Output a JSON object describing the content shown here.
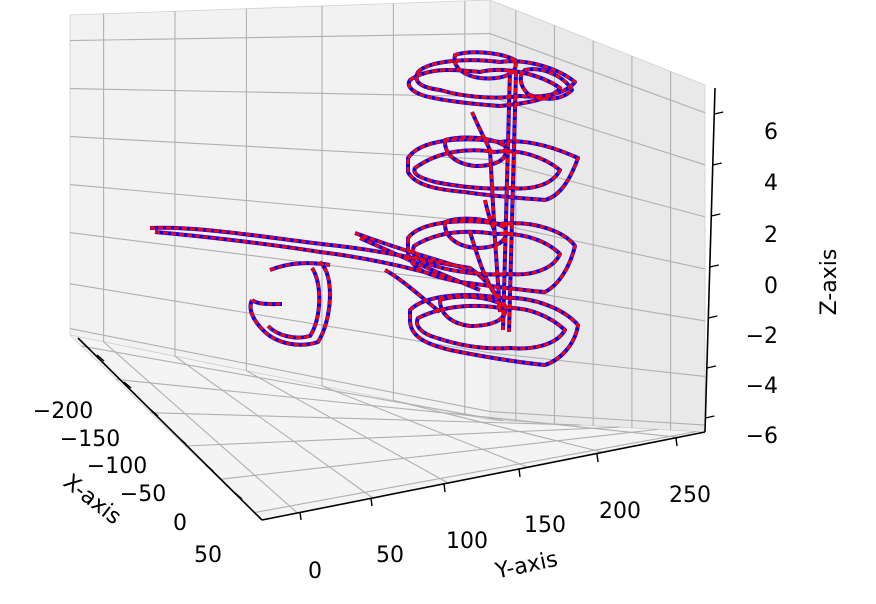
{
  "chart_data": {
    "type": "line3d",
    "xlabel": "X-axis",
    "ylabel": "Y-axis",
    "zlabel": "Z-axis",
    "x_ticks": [
      "−200",
      "−150",
      "−100",
      "−50",
      "0",
      "50"
    ],
    "y_ticks": [
      "0",
      "50",
      "100",
      "150",
      "200",
      "250"
    ],
    "z_ticks": [
      "−6",
      "−4",
      "−2",
      "0",
      "2",
      "4",
      "6"
    ],
    "grid": true,
    "legend": "none",
    "series_colors": {
      "ground_truth": "#0000ff",
      "estimate": "#ff0000"
    },
    "series": [
      {
        "key": "ground_truth",
        "values": []
      },
      {
        "key": "estimate",
        "values": []
      }
    ],
    "notes": "two overlapping trajectories (blue solid, red dashed) forming four stacked floor loops with vertical connections and a long horizontal excursion"
  }
}
